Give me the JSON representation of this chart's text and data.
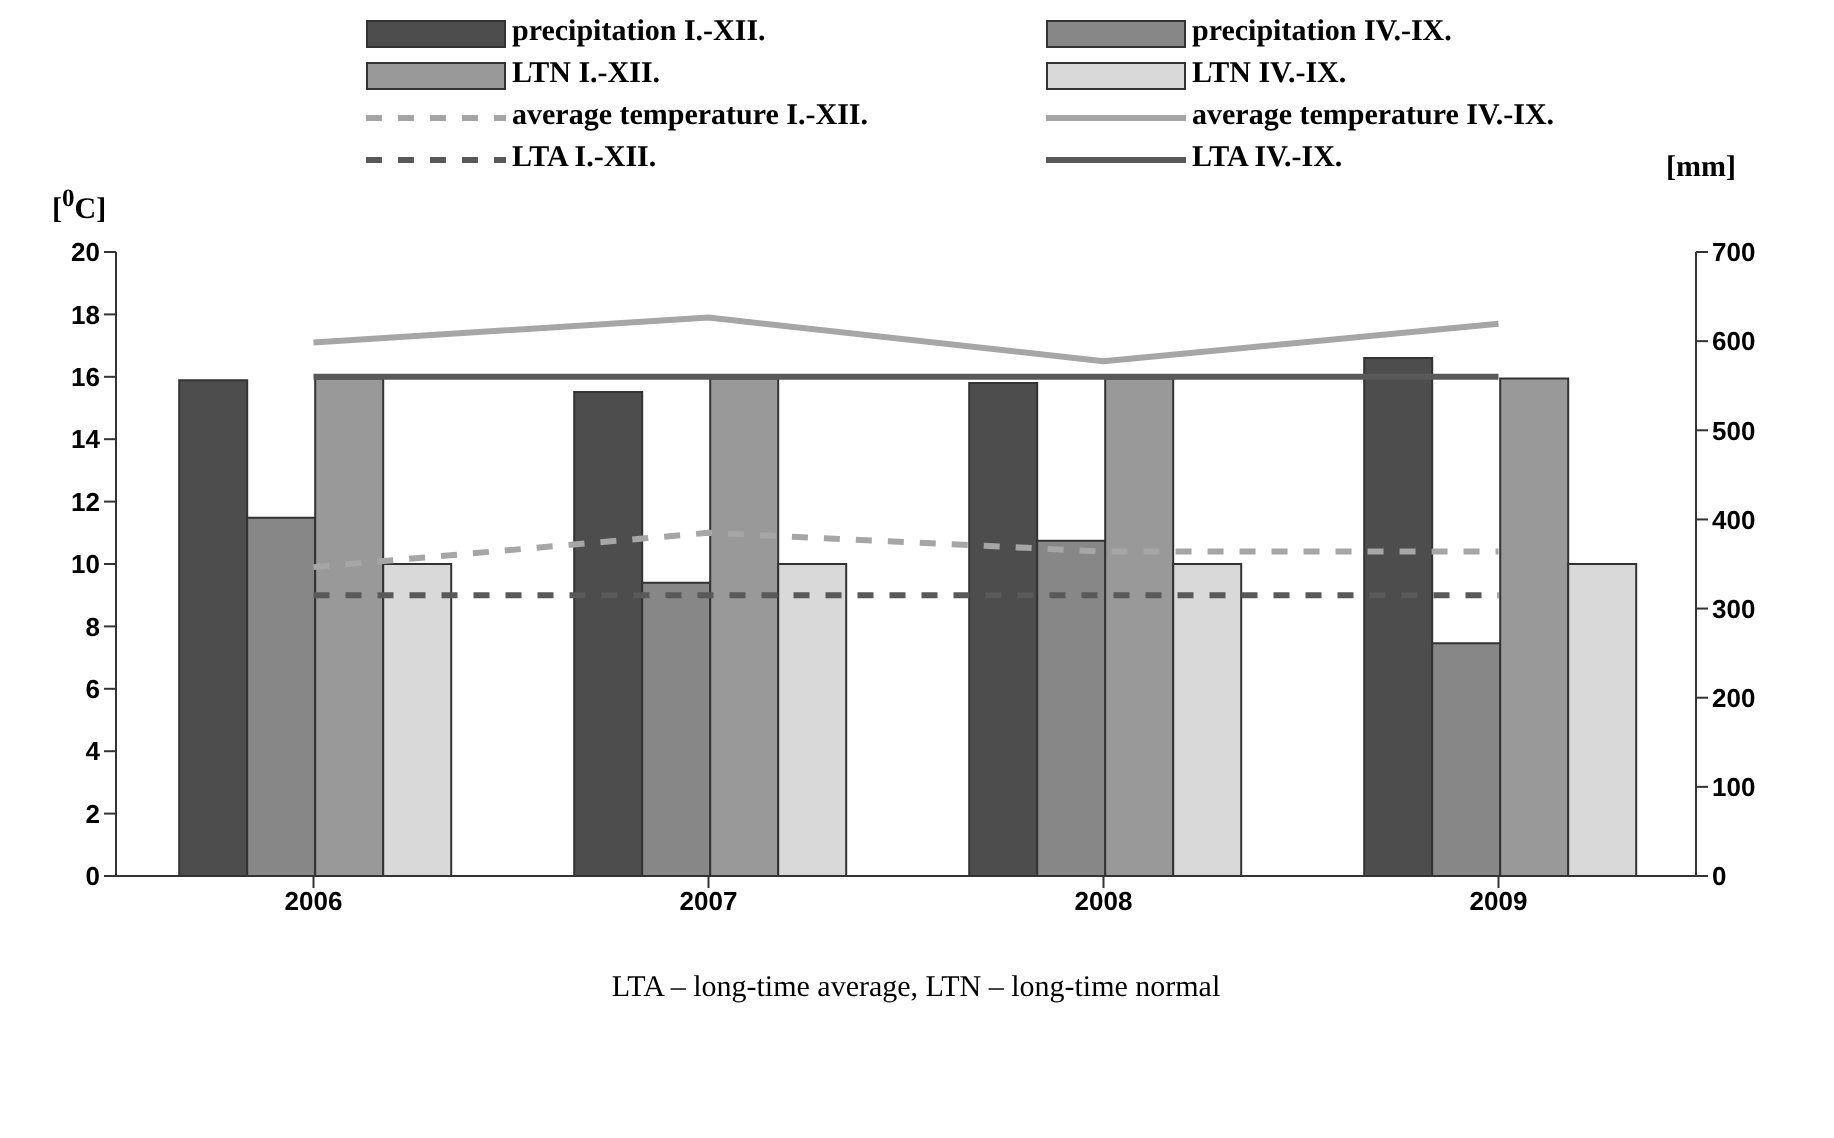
{
  "chart_data": {
    "type": "bar",
    "categories": [
      "2006",
      "2007",
      "2008",
      "2009"
    ],
    "ylabel": "[$^{0}$C]",
    "y2label": "[mm]",
    "ylim": [
      0,
      20
    ],
    "yticks": [
      0,
      2,
      4,
      6,
      8,
      10,
      12,
      14,
      16,
      18,
      20
    ],
    "y2lim": [
      0,
      700
    ],
    "y2ticks": [
      0,
      100,
      200,
      300,
      400,
      500,
      600,
      700
    ],
    "legend": "top",
    "grid": false,
    "annotations": [
      "LTA – long-time average, LTN – long-time normal"
    ],
    "series": [
      {
        "name": "precipitation I.-XII.",
        "axis": "y2",
        "color": "#4d4d4d",
        "values": [
          556,
          543,
          553,
          581
        ]
      },
      {
        "name": "precipitation IV.-IX.",
        "axis": "y2",
        "color": "#878787",
        "values": [
          402,
          329,
          376,
          261
        ]
      },
      {
        "name": "LTN  I.-XII.",
        "axis": "y2",
        "color": "#999999",
        "values": [
          558,
          558,
          558,
          558
        ]
      },
      {
        "name": "LTN  IV.-IX.",
        "axis": "y2",
        "color": "#d9d9d9",
        "values": [
          350,
          350,
          350,
          350
        ]
      },
      {
        "name": "average temperature I.-XII.",
        "type": "line",
        "color": "#a6a6a6",
        "line_style": "dashed",
        "values": [
          9.9,
          11.0,
          10.4,
          10.4
        ]
      },
      {
        "name": "average temperature IV.-IX.",
        "type": "line",
        "color": "#a6a6a6",
        "line_style": "solid",
        "values": [
          17.1,
          17.9,
          16.5,
          17.7
        ]
      },
      {
        "name": "LTA I.-XII.",
        "type": "line",
        "color": "#595959",
        "line_style": "dashed",
        "values": [
          9,
          9,
          9,
          9
        ]
      },
      {
        "name": "LTA IV.-IX.",
        "type": "line",
        "color": "#595959",
        "line_style": "solid",
        "values": [
          16,
          16,
          16,
          16
        ]
      }
    ]
  }
}
